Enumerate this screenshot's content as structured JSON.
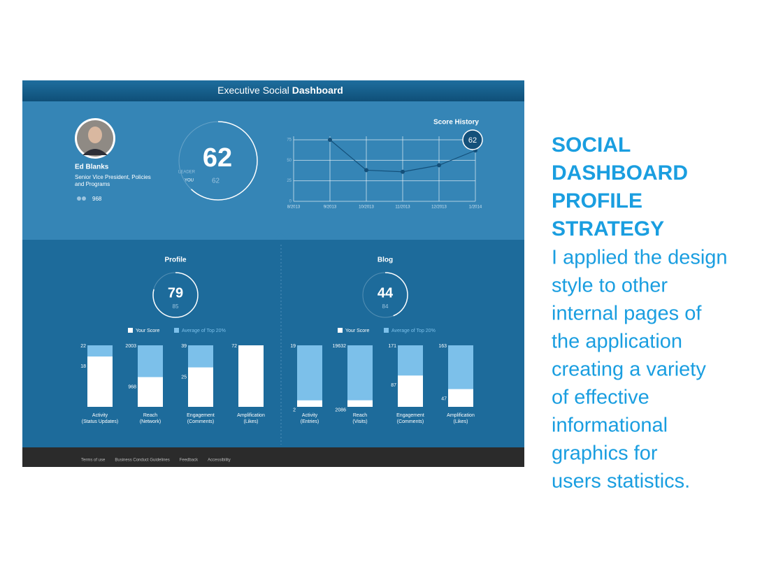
{
  "header": {
    "title_light": "Executive Social",
    "title_bold": "Dashboard"
  },
  "profile": {
    "name": "Ed Blanks",
    "role_lines": [
      "Senior Vice President, Policies",
      "and Programs"
    ],
    "followers": 968,
    "score": 62,
    "leader_label": "LEADER",
    "you_label": "YOU",
    "you_score": 62
  },
  "score_history": {
    "title": "Score History",
    "x": [
      "8/2013",
      "9/2013",
      "10/2013",
      "11/2013",
      "12/2013",
      "1/2014"
    ],
    "values": [
      null,
      75,
      38,
      36,
      44,
      62
    ],
    "ylim": [
      0,
      75
    ],
    "yticks": [
      0,
      25,
      50,
      75
    ]
  },
  "legend": {
    "your_score": "Your Score",
    "average": "Average of Top 20%"
  },
  "sections": [
    {
      "title": "Profile",
      "score": 79,
      "average_score": 85,
      "bars": [
        {
          "name": "Activity",
          "sub": "(Status Updates)",
          "you": 18,
          "average": 22
        },
        {
          "name": "Reach",
          "sub": "(Network)",
          "you": 968,
          "average": 2003
        },
        {
          "name": "Engagement",
          "sub": "(Comments)",
          "you": 25,
          "average": 39
        },
        {
          "name": "Amplification",
          "sub": "(Likes)",
          "you": 72,
          "average": null
        }
      ]
    },
    {
      "title": "Blog",
      "score": 44,
      "average_score": 84,
      "bars": [
        {
          "name": "Activity",
          "sub": "(Entries)",
          "you": 2,
          "average": 19
        },
        {
          "name": "Reach",
          "sub": "(Visits)",
          "you": 2086,
          "average": 19632
        },
        {
          "name": "Engagement",
          "sub": "(Comments)",
          "you": 87,
          "average": 171
        },
        {
          "name": "Amplification",
          "sub": "(Likes)",
          "you": 47,
          "average": 163
        }
      ]
    }
  ],
  "footer": [
    "Terms of use",
    "Business Conduct Guidelines",
    "Feedback",
    "Accessibility"
  ],
  "caption": {
    "heading": [
      "SOCIAL",
      "DASHBOARD",
      "PROFILE",
      "STRATEGY"
    ],
    "body": [
      "I applied the design",
      "style to other",
      "internal pages of",
      "the application",
      "creating a variety",
      "of effective",
      "informational",
      "graphics for",
      "users statistics."
    ]
  }
}
